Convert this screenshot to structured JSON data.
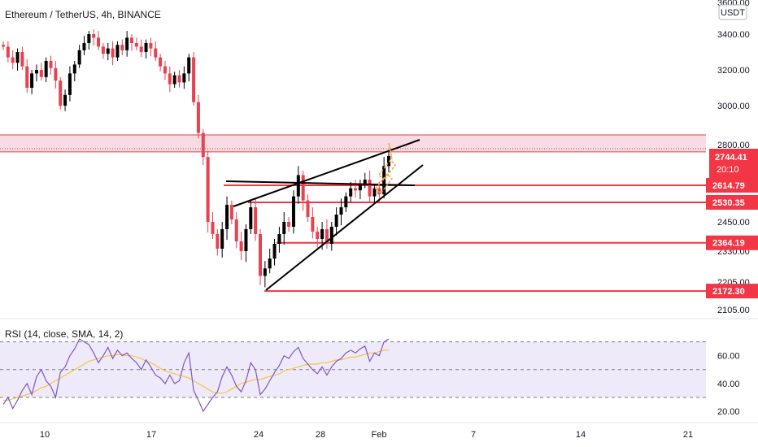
{
  "header": {
    "title": "Ethereum / TetherUS, 4h, BINANCE",
    "currency": "USDT"
  },
  "colors": {
    "up": "#26a69a",
    "down": "#ef5350",
    "bear_candle": "#e8414f",
    "bull_candle": "#000000",
    "level_line": "#f23645",
    "zone_fill": "#f7dde3",
    "rsi_band": "#efeafa",
    "rsi_line": "#7e57c2",
    "rsi_ma": "#f5c542",
    "trend_line": "#000000",
    "projection": "#f4a742"
  },
  "chart_data": [
    {
      "type": "candlestick",
      "title": "Ethereum / TetherUS, 4h, BINANCE",
      "x_ticks": [
        "10",
        "17",
        "24",
        "28",
        "Feb",
        "7",
        "14",
        "21"
      ],
      "y_ticks": [
        "3600.00",
        "3400.00",
        "3200.00",
        "3000.00",
        "2800.00",
        "2450.00",
        "2330.00",
        "2205.00",
        "2105.00"
      ],
      "ylim": [
        2105,
        3600
      ],
      "levels": [
        {
          "name": "resistance-zone",
          "top": 2850,
          "bottom": 2765
        },
        {
          "name": "level-2614",
          "value": 2614.79,
          "label": "2614.79"
        },
        {
          "name": "level-2530",
          "value": 2530.35,
          "label": "2530.35"
        },
        {
          "name": "level-2364",
          "value": 2364.19,
          "label": "2364.19"
        },
        {
          "name": "level-2172",
          "value": 2172.3,
          "label": "2172.30"
        }
      ],
      "last_price": {
        "value": 2744.41,
        "label": "2744.41",
        "countdown": "20:10"
      },
      "close_series": [
        3330,
        3270,
        3240,
        3300,
        3220,
        3100,
        3180,
        3200,
        3160,
        3250,
        3210,
        3140,
        3000,
        3060,
        3180,
        3230,
        3310,
        3350,
        3400,
        3380,
        3330,
        3290,
        3320,
        3270,
        3340,
        3310,
        3380,
        3350,
        3330,
        3300,
        3350,
        3320,
        3270,
        3220,
        3180,
        3120,
        3170,
        3130,
        3180,
        3270,
        3020,
        2860,
        2740,
        2450,
        2400,
        2340,
        2420,
        2520,
        2460,
        2370,
        2330,
        2420,
        2510,
        2400,
        2230,
        2260,
        2300,
        2360,
        2400,
        2450,
        2430,
        2560,
        2660,
        2540,
        2470,
        2410,
        2380,
        2420,
        2360,
        2430,
        2480,
        2510,
        2560,
        2600,
        2590,
        2620,
        2640,
        2560,
        2600,
        2570,
        2700,
        2745
      ]
    },
    {
      "type": "line",
      "title": "RSI (14, close, SMA, 14, 2)",
      "y_ticks": [
        "60.00",
        "40.00",
        "20.00"
      ],
      "ylim": [
        13,
        85
      ],
      "bands": [
        70,
        50,
        30
      ],
      "rsi": [
        25,
        30,
        22,
        28,
        35,
        40,
        32,
        45,
        50,
        42,
        38,
        30,
        48,
        52,
        60,
        65,
        72,
        70,
        68,
        62,
        55,
        60,
        66,
        58,
        64,
        60,
        62,
        58,
        55,
        50,
        57,
        52,
        46,
        44,
        40,
        46,
        40,
        42,
        55,
        62,
        35,
        28,
        20,
        25,
        30,
        34,
        45,
        52,
        46,
        38,
        34,
        42,
        55,
        50,
        32,
        36,
        42,
        48,
        53,
        60,
        58,
        63,
        66,
        58,
        54,
        50,
        47,
        52,
        46,
        52,
        56,
        58,
        62,
        64,
        62,
        65,
        67,
        56,
        62,
        60,
        70,
        72
      ],
      "rsi_ma": [
        28,
        28,
        29,
        30,
        31,
        32,
        33,
        35,
        37,
        38,
        40,
        42,
        44,
        46,
        48,
        50,
        52,
        54,
        56,
        57,
        58,
        59,
        60,
        60,
        61,
        61,
        60,
        60,
        59,
        58,
        56,
        55,
        53,
        51,
        49,
        48,
        47,
        46,
        45,
        44,
        42,
        40,
        38,
        36,
        34,
        33,
        33,
        34,
        36,
        38,
        40,
        41,
        42,
        43,
        43,
        44,
        45,
        46,
        47,
        49,
        50,
        51,
        52,
        53,
        54,
        54,
        54,
        55,
        55,
        56,
        57,
        57,
        58,
        59,
        59,
        60,
        61,
        62,
        62,
        63,
        64,
        64
      ]
    }
  ]
}
